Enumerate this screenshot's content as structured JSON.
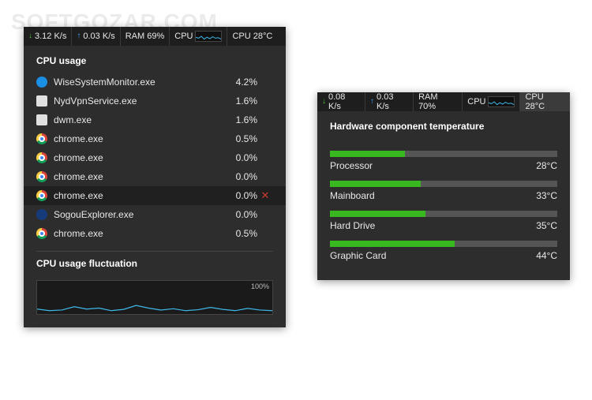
{
  "watermark": "SOFTGOZAR.COM",
  "left": {
    "status": {
      "down": "3.12 K/s",
      "up": "0.03 K/s",
      "ram": "RAM 69%",
      "cpu_label": "CPU",
      "cpu_temp": "CPU 28°C",
      "spark_color": "#3fb8e8"
    },
    "section_title": "CPU usage",
    "rows": [
      {
        "name": "WiseSystemMonitor.exe",
        "pct": "4.2%",
        "icon": "blue"
      },
      {
        "name": "NydVpnService.exe",
        "pct": "1.6%",
        "icon": "white"
      },
      {
        "name": "dwm.exe",
        "pct": "1.6%",
        "icon": "white"
      },
      {
        "name": "chrome.exe",
        "pct": "0.5%",
        "icon": "chrome"
      },
      {
        "name": "chrome.exe",
        "pct": "0.0%",
        "icon": "chrome"
      },
      {
        "name": "chrome.exe",
        "pct": "0.0%",
        "icon": "chrome"
      },
      {
        "name": "chrome.exe",
        "pct": "0.0%",
        "icon": "chrome",
        "hovered": true
      },
      {
        "name": "SogouExplorer.exe",
        "pct": "0.0%",
        "icon": "sogou"
      },
      {
        "name": "chrome.exe",
        "pct": "0.5%",
        "icon": "chrome"
      }
    ],
    "fluct_title": "CPU usage fluctuation",
    "fluct_ylabel": "100%",
    "fluct_color": "#3fb8e8",
    "fluct_bg": "#1a1a1a",
    "fluct_points": [
      0.85,
      0.9,
      0.88,
      0.78,
      0.85,
      0.82,
      0.9,
      0.86,
      0.74,
      0.82,
      0.88,
      0.84,
      0.9,
      0.87,
      0.8,
      0.86,
      0.9,
      0.83,
      0.88,
      0.9
    ]
  },
  "right": {
    "status": {
      "down": "0.08 K/s",
      "up": "0.03 K/s",
      "ram": "RAM 70%",
      "cpu_label": "CPU",
      "cpu_temp": "CPU 28°C",
      "spark_color": "#3fb8e8",
      "active_tab": "temp"
    },
    "section_title": "Hardware component temperature",
    "items": [
      {
        "label": "Processor",
        "temp": "28°C",
        "fill_pct": 33
      },
      {
        "label": "Mainboard",
        "temp": "33°C",
        "fill_pct": 40
      },
      {
        "label": "Hard Drive",
        "temp": "35°C",
        "fill_pct": 42
      },
      {
        "label": "Graphic Card",
        "temp": "44°C",
        "fill_pct": 55
      }
    ],
    "bar_fill_color": "#39b81f",
    "bar_track_color": "#555555"
  },
  "colors": {
    "panel_bg": "#2d2d2d",
    "status_bg": "#1e1e1e",
    "text": "#e8e8e8"
  }
}
